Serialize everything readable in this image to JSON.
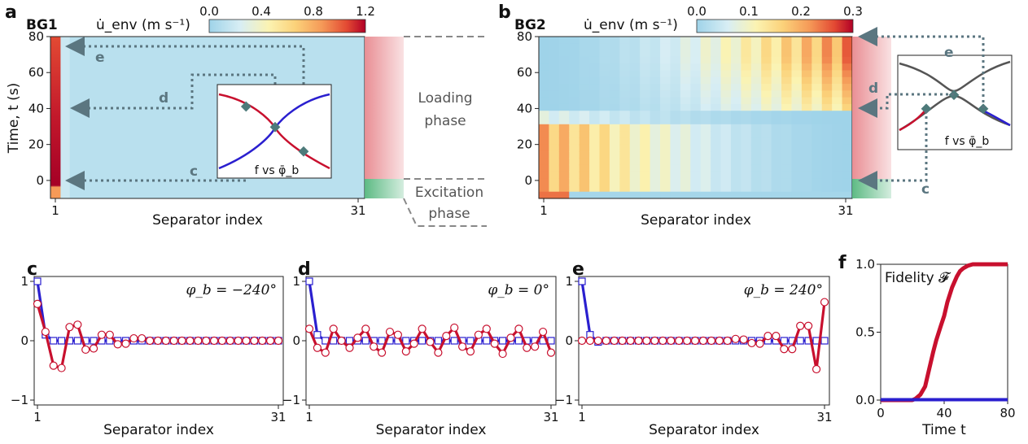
{
  "panel_letters": {
    "a": "a",
    "b": "b",
    "c": "c",
    "d": "d",
    "e": "e",
    "f": "f"
  },
  "colors": {
    "red": "#c8102e",
    "blue": "#2a1fcf",
    "guide": "#5b7680",
    "loading": "#e8898f",
    "excitation": "#55b77e",
    "heat_low": "#bde3ef"
  },
  "chart_data": [
    {
      "id": "a",
      "type": "heatmap",
      "label": "BG1",
      "colorbar_label": "u̇_env (m s⁻¹)",
      "colorbar_ticks": [
        "0.0",
        "0.4",
        "0.8",
        "1.2"
      ],
      "clim": [
        0.0,
        1.2
      ],
      "xlabel": "Separator index",
      "ylabel": "Time, t (s)",
      "xticks": [
        "1",
        "31"
      ],
      "yticks": [
        "80",
        "60",
        "40",
        "20",
        "0"
      ],
      "xlim": [
        1,
        31
      ],
      "ylim": [
        -10,
        80
      ],
      "annotations": [
        "c",
        "d",
        "e"
      ],
      "inset_label": "f vs φ̄_b",
      "phase_labels": [
        "Loading phase",
        "Excitation phase"
      ]
    },
    {
      "id": "b",
      "type": "heatmap",
      "label": "BG2",
      "colorbar_label": "u̇_env (m s⁻¹)",
      "colorbar_ticks": [
        "0.0",
        "0.1",
        "0.2",
        "0.3"
      ],
      "clim": [
        0.0,
        0.3
      ],
      "xlabel": "Separator index",
      "ylabel": "",
      "xticks": [
        "1",
        "31"
      ],
      "yticks": [
        "80",
        "60",
        "40",
        "20",
        "0"
      ],
      "xlim": [
        1,
        31
      ],
      "ylim": [
        -10,
        80
      ],
      "annotations": [
        "e",
        "d",
        "c"
      ],
      "inset_label": "f vs φ̄_b"
    },
    {
      "id": "c",
      "type": "line",
      "title": "φ_b = −240°",
      "xlabel": "Separator index",
      "xticks": [
        "1",
        "31"
      ],
      "yticks": [
        "1",
        "0",
        "−1"
      ],
      "xlim": [
        1,
        31
      ],
      "ylim": [
        -1,
        1
      ],
      "x": [
        1,
        2,
        3,
        4,
        5,
        6,
        7,
        8,
        9,
        10,
        11,
        12,
        13,
        14,
        15,
        16,
        17,
        18,
        19,
        20,
        21,
        22,
        23,
        24,
        25,
        26,
        27,
        28,
        29,
        30,
        31
      ],
      "series": [
        {
          "color": "blue",
          "values": [
            1.0,
            0.1,
            0.0,
            0.0,
            0.0,
            0.0,
            0.0,
            0.0,
            0.0,
            0.0,
            0.0,
            0.0,
            0.0,
            0.0,
            0.0,
            0.0,
            0.0,
            0.0,
            0.0,
            0.0,
            0.0,
            0.0,
            0.0,
            0.0,
            0.0,
            0.0,
            0.0,
            0.0,
            0.0,
            0.0,
            0.0
          ]
        },
        {
          "color": "red",
          "values": [
            0.62,
            0.15,
            -0.42,
            -0.46,
            0.23,
            0.27,
            -0.15,
            -0.13,
            0.1,
            0.1,
            -0.06,
            -0.05,
            0.04,
            0.04,
            0.0,
            0.0,
            0.0,
            0.0,
            0.0,
            0.0,
            0.0,
            0.0,
            0.0,
            0.0,
            0.0,
            0.0,
            0.0,
            0.0,
            0.0,
            0.0,
            0.0
          ]
        }
      ]
    },
    {
      "id": "d",
      "type": "line",
      "title": "φ_b = 0°",
      "xlabel": "Separator index",
      "xticks": [
        "1",
        "31"
      ],
      "yticks": [
        "1",
        "0",
        "−1"
      ],
      "xlim": [
        1,
        31
      ],
      "ylim": [
        -1,
        1
      ],
      "x": [
        1,
        2,
        3,
        4,
        5,
        6,
        7,
        8,
        9,
        10,
        11,
        12,
        13,
        14,
        15,
        16,
        17,
        18,
        19,
        20,
        21,
        22,
        23,
        24,
        25,
        26,
        27,
        28,
        29,
        30,
        31
      ],
      "series": [
        {
          "color": "blue",
          "values": [
            1.0,
            0.1,
            0.0,
            0.0,
            0.0,
            0.0,
            0.0,
            0.0,
            0.0,
            0.0,
            0.0,
            0.0,
            0.0,
            0.0,
            0.0,
            0.0,
            0.0,
            0.0,
            0.0,
            0.0,
            0.0,
            0.0,
            0.0,
            0.0,
            0.0,
            0.0,
            0.0,
            0.0,
            0.0,
            0.0,
            0.0
          ]
        },
        {
          "color": "red",
          "values": [
            0.2,
            -0.12,
            -0.2,
            0.2,
            0.0,
            -0.12,
            0.05,
            0.2,
            -0.1,
            -0.2,
            0.15,
            0.1,
            -0.18,
            -0.05,
            0.2,
            -0.02,
            -0.2,
            0.08,
            0.22,
            -0.1,
            -0.18,
            0.1,
            0.2,
            -0.05,
            -0.22,
            0.05,
            0.2,
            -0.12,
            -0.1,
            0.15,
            -0.2
          ]
        }
      ]
    },
    {
      "id": "e",
      "type": "line",
      "title": "φ_b = 240°",
      "xlabel": "Separator index",
      "xticks": [
        "1",
        "31"
      ],
      "yticks": [
        "1",
        "0",
        "−1"
      ],
      "xlim": [
        1,
        31
      ],
      "ylim": [
        -1,
        1
      ],
      "x": [
        1,
        2,
        3,
        4,
        5,
        6,
        7,
        8,
        9,
        10,
        11,
        12,
        13,
        14,
        15,
        16,
        17,
        18,
        19,
        20,
        21,
        22,
        23,
        24,
        25,
        26,
        27,
        28,
        29,
        30,
        31
      ],
      "series": [
        {
          "color": "blue",
          "values": [
            1.0,
            0.1,
            -0.02,
            0.0,
            0.0,
            0.0,
            0.0,
            0.0,
            0.0,
            0.0,
            0.0,
            0.0,
            0.0,
            0.0,
            0.0,
            0.0,
            0.0,
            0.0,
            0.0,
            0.0,
            0.0,
            0.0,
            0.0,
            0.0,
            0.0,
            0.0,
            0.0,
            0.0,
            0.0,
            0.0,
            0.0
          ]
        },
        {
          "color": "red",
          "values": [
            0.0,
            0.0,
            0.0,
            0.0,
            0.0,
            0.0,
            0.0,
            0.0,
            0.0,
            0.0,
            0.0,
            0.0,
            0.0,
            0.0,
            0.0,
            0.0,
            0.0,
            0.0,
            0.0,
            0.03,
            0.02,
            -0.04,
            -0.05,
            0.08,
            0.08,
            -0.14,
            -0.14,
            0.25,
            0.25,
            -0.48,
            0.65
          ]
        }
      ]
    },
    {
      "id": "f",
      "type": "line",
      "legend_text": "Fidelity 𝓕",
      "xlabel": "Time t",
      "xticks": [
        "0",
        "40",
        "80"
      ],
      "yticks": [
        "1.0",
        "0.5",
        "0.0"
      ],
      "xlim": [
        0,
        80
      ],
      "ylim": [
        0,
        1
      ],
      "series": [
        {
          "color": "red",
          "x": [
            0,
            5,
            10,
            15,
            20,
            22,
            25,
            28,
            30,
            33,
            35,
            38,
            40,
            42,
            45,
            48,
            50,
            52,
            55,
            58,
            60,
            63,
            66,
            70,
            75,
            80
          ],
          "values": [
            0,
            0,
            0,
            0,
            0,
            0.01,
            0.04,
            0.1,
            0.2,
            0.35,
            0.44,
            0.55,
            0.62,
            0.72,
            0.83,
            0.91,
            0.95,
            0.97,
            0.99,
            1.0,
            1.0,
            1.0,
            1.0,
            1.0,
            1.0,
            1.0
          ]
        },
        {
          "color": "blue",
          "x": [
            0,
            80
          ],
          "values": [
            0.003,
            0.003
          ]
        }
      ]
    }
  ]
}
